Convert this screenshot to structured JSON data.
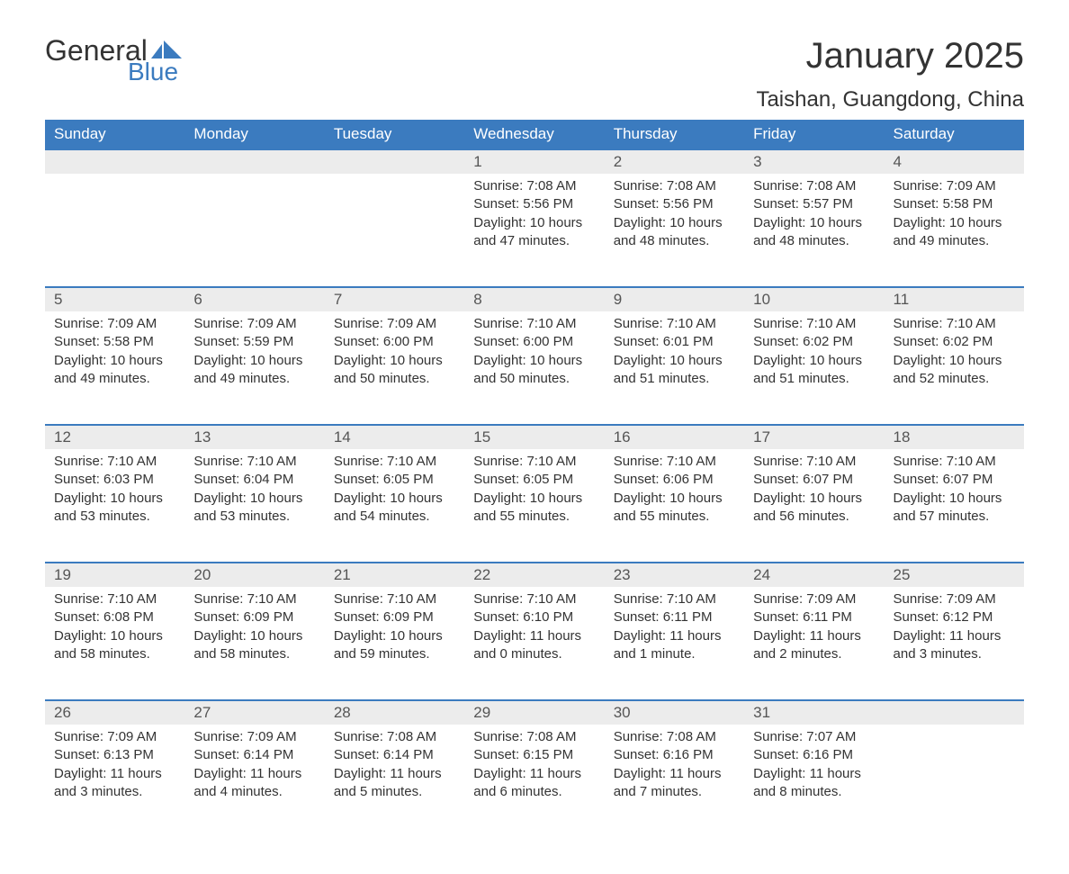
{
  "logo": {
    "word1": "General",
    "word2": "Blue"
  },
  "title": "January 2025",
  "location": "Taishan, Guangdong, China",
  "colors": {
    "header_bg": "#3b7bbf",
    "header_text": "#ffffff",
    "daynum_bg": "#ececec",
    "row_border": "#3b7bbf",
    "body_text": "#333333",
    "logo_blue": "#3b7bbf"
  },
  "day_headers": [
    "Sunday",
    "Monday",
    "Tuesday",
    "Wednesday",
    "Thursday",
    "Friday",
    "Saturday"
  ],
  "weeks": [
    [
      null,
      null,
      null,
      {
        "n": "1",
        "sunrise": "Sunrise: 7:08 AM",
        "sunset": "Sunset: 5:56 PM",
        "dl1": "Daylight: 10 hours",
        "dl2": "and 47 minutes."
      },
      {
        "n": "2",
        "sunrise": "Sunrise: 7:08 AM",
        "sunset": "Sunset: 5:56 PM",
        "dl1": "Daylight: 10 hours",
        "dl2": "and 48 minutes."
      },
      {
        "n": "3",
        "sunrise": "Sunrise: 7:08 AM",
        "sunset": "Sunset: 5:57 PM",
        "dl1": "Daylight: 10 hours",
        "dl2": "and 48 minutes."
      },
      {
        "n": "4",
        "sunrise": "Sunrise: 7:09 AM",
        "sunset": "Sunset: 5:58 PM",
        "dl1": "Daylight: 10 hours",
        "dl2": "and 49 minutes."
      }
    ],
    [
      {
        "n": "5",
        "sunrise": "Sunrise: 7:09 AM",
        "sunset": "Sunset: 5:58 PM",
        "dl1": "Daylight: 10 hours",
        "dl2": "and 49 minutes."
      },
      {
        "n": "6",
        "sunrise": "Sunrise: 7:09 AM",
        "sunset": "Sunset: 5:59 PM",
        "dl1": "Daylight: 10 hours",
        "dl2": "and 49 minutes."
      },
      {
        "n": "7",
        "sunrise": "Sunrise: 7:09 AM",
        "sunset": "Sunset: 6:00 PM",
        "dl1": "Daylight: 10 hours",
        "dl2": "and 50 minutes."
      },
      {
        "n": "8",
        "sunrise": "Sunrise: 7:10 AM",
        "sunset": "Sunset: 6:00 PM",
        "dl1": "Daylight: 10 hours",
        "dl2": "and 50 minutes."
      },
      {
        "n": "9",
        "sunrise": "Sunrise: 7:10 AM",
        "sunset": "Sunset: 6:01 PM",
        "dl1": "Daylight: 10 hours",
        "dl2": "and 51 minutes."
      },
      {
        "n": "10",
        "sunrise": "Sunrise: 7:10 AM",
        "sunset": "Sunset: 6:02 PM",
        "dl1": "Daylight: 10 hours",
        "dl2": "and 51 minutes."
      },
      {
        "n": "11",
        "sunrise": "Sunrise: 7:10 AM",
        "sunset": "Sunset: 6:02 PM",
        "dl1": "Daylight: 10 hours",
        "dl2": "and 52 minutes."
      }
    ],
    [
      {
        "n": "12",
        "sunrise": "Sunrise: 7:10 AM",
        "sunset": "Sunset: 6:03 PM",
        "dl1": "Daylight: 10 hours",
        "dl2": "and 53 minutes."
      },
      {
        "n": "13",
        "sunrise": "Sunrise: 7:10 AM",
        "sunset": "Sunset: 6:04 PM",
        "dl1": "Daylight: 10 hours",
        "dl2": "and 53 minutes."
      },
      {
        "n": "14",
        "sunrise": "Sunrise: 7:10 AM",
        "sunset": "Sunset: 6:05 PM",
        "dl1": "Daylight: 10 hours",
        "dl2": "and 54 minutes."
      },
      {
        "n": "15",
        "sunrise": "Sunrise: 7:10 AM",
        "sunset": "Sunset: 6:05 PM",
        "dl1": "Daylight: 10 hours",
        "dl2": "and 55 minutes."
      },
      {
        "n": "16",
        "sunrise": "Sunrise: 7:10 AM",
        "sunset": "Sunset: 6:06 PM",
        "dl1": "Daylight: 10 hours",
        "dl2": "and 55 minutes."
      },
      {
        "n": "17",
        "sunrise": "Sunrise: 7:10 AM",
        "sunset": "Sunset: 6:07 PM",
        "dl1": "Daylight: 10 hours",
        "dl2": "and 56 minutes."
      },
      {
        "n": "18",
        "sunrise": "Sunrise: 7:10 AM",
        "sunset": "Sunset: 6:07 PM",
        "dl1": "Daylight: 10 hours",
        "dl2": "and 57 minutes."
      }
    ],
    [
      {
        "n": "19",
        "sunrise": "Sunrise: 7:10 AM",
        "sunset": "Sunset: 6:08 PM",
        "dl1": "Daylight: 10 hours",
        "dl2": "and 58 minutes."
      },
      {
        "n": "20",
        "sunrise": "Sunrise: 7:10 AM",
        "sunset": "Sunset: 6:09 PM",
        "dl1": "Daylight: 10 hours",
        "dl2": "and 58 minutes."
      },
      {
        "n": "21",
        "sunrise": "Sunrise: 7:10 AM",
        "sunset": "Sunset: 6:09 PM",
        "dl1": "Daylight: 10 hours",
        "dl2": "and 59 minutes."
      },
      {
        "n": "22",
        "sunrise": "Sunrise: 7:10 AM",
        "sunset": "Sunset: 6:10 PM",
        "dl1": "Daylight: 11 hours",
        "dl2": "and 0 minutes."
      },
      {
        "n": "23",
        "sunrise": "Sunrise: 7:10 AM",
        "sunset": "Sunset: 6:11 PM",
        "dl1": "Daylight: 11 hours",
        "dl2": "and 1 minute."
      },
      {
        "n": "24",
        "sunrise": "Sunrise: 7:09 AM",
        "sunset": "Sunset: 6:11 PM",
        "dl1": "Daylight: 11 hours",
        "dl2": "and 2 minutes."
      },
      {
        "n": "25",
        "sunrise": "Sunrise: 7:09 AM",
        "sunset": "Sunset: 6:12 PM",
        "dl1": "Daylight: 11 hours",
        "dl2": "and 3 minutes."
      }
    ],
    [
      {
        "n": "26",
        "sunrise": "Sunrise: 7:09 AM",
        "sunset": "Sunset: 6:13 PM",
        "dl1": "Daylight: 11 hours",
        "dl2": "and 3 minutes."
      },
      {
        "n": "27",
        "sunrise": "Sunrise: 7:09 AM",
        "sunset": "Sunset: 6:14 PM",
        "dl1": "Daylight: 11 hours",
        "dl2": "and 4 minutes."
      },
      {
        "n": "28",
        "sunrise": "Sunrise: 7:08 AM",
        "sunset": "Sunset: 6:14 PM",
        "dl1": "Daylight: 11 hours",
        "dl2": "and 5 minutes."
      },
      {
        "n": "29",
        "sunrise": "Sunrise: 7:08 AM",
        "sunset": "Sunset: 6:15 PM",
        "dl1": "Daylight: 11 hours",
        "dl2": "and 6 minutes."
      },
      {
        "n": "30",
        "sunrise": "Sunrise: 7:08 AM",
        "sunset": "Sunset: 6:16 PM",
        "dl1": "Daylight: 11 hours",
        "dl2": "and 7 minutes."
      },
      {
        "n": "31",
        "sunrise": "Sunrise: 7:07 AM",
        "sunset": "Sunset: 6:16 PM",
        "dl1": "Daylight: 11 hours",
        "dl2": "and 8 minutes."
      },
      null
    ]
  ]
}
